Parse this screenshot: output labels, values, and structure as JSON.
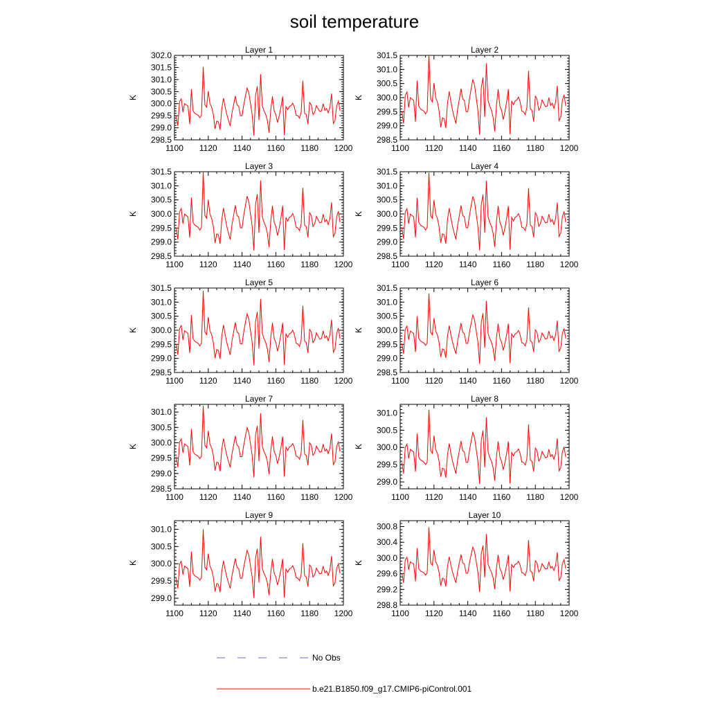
{
  "figure": {
    "title": "soil temperature"
  },
  "chart_data": {
    "type": "line",
    "x_start": 1101,
    "x_end": 1198,
    "xlim": [
      1100,
      1200
    ],
    "x_ticks": [
      1100,
      1120,
      1140,
      1160,
      1180,
      1200
    ],
    "line_color": "#ff0000",
    "obs_color": "#6a6ad0",
    "legend": [
      {
        "label": "No Obs",
        "style": "dashed",
        "color": "#6a6ad0"
      },
      {
        "label": "b.e21.B1850.f09_g17.CMIP6-piControl.001",
        "style": "solid",
        "color": "#ff0000"
      }
    ],
    "base_series": [
      299.5,
      299.08,
      300.08,
      300.2,
      299.65,
      300.0,
      299.95,
      299.9,
      299.15,
      300.6,
      299.7,
      299.6,
      299.56,
      299.52,
      299.42,
      299.52,
      301.52,
      299.95,
      299.85,
      300.52,
      300.0,
      299.85,
      299.55,
      298.95,
      299.28,
      299.25,
      298.92,
      299.8,
      300.22,
      299.85,
      299.55,
      299.3,
      299.08,
      299.6,
      299.95,
      300.32,
      299.95,
      299.9,
      299.5,
      299.5,
      299.95,
      300.32,
      300.65,
      300.45,
      300.0,
      299.55,
      298.68,
      300.35,
      300.72,
      299.32,
      301.22,
      299.9,
      299.7,
      299.55,
      299.3,
      298.8,
      299.75,
      300.3,
      299.7,
      299.55,
      299.22,
      299.5,
      299.85,
      300.3,
      298.7,
      299.88,
      299.75,
      299.88,
      299.92,
      300.02,
      299.85,
      299.52,
      299.5,
      299.4,
      299.65,
      300.95,
      299.6,
      299.55,
      299.15,
      300.05,
      299.95,
      299.55,
      299.65,
      299.92,
      299.8,
      299.68,
      299.7,
      300.0,
      299.72,
      299.8,
      299.62,
      299.85,
      300.42,
      299.18,
      299.3,
      299.9,
      300.1,
      299.7
    ],
    "panels": [
      {
        "title": "Layer 1",
        "ylabel": "K",
        "ylim": [
          298.5,
          302.0
        ],
        "y_ticks": [
          "298.5",
          "299.0",
          "299.5",
          "300.0",
          "300.5",
          "301.0",
          "301.5",
          "302.0"
        ],
        "amp": 1.0,
        "offset": 0.0
      },
      {
        "title": "Layer 2",
        "ylabel": "K",
        "ylim": [
          298.5,
          301.5
        ],
        "y_ticks": [
          "298.5",
          "299.0",
          "299.5",
          "300.0",
          "300.5",
          "301.0",
          "301.5"
        ],
        "amp": 1.0,
        "offset": 0.0
      },
      {
        "title": "Layer 3",
        "ylabel": "K",
        "ylim": [
          298.5,
          301.5
        ],
        "y_ticks": [
          "298.5",
          "299.0",
          "299.5",
          "300.0",
          "300.5",
          "301.0",
          "301.5"
        ],
        "amp": 0.98,
        "offset": 0.0
      },
      {
        "title": "Layer 4",
        "ylabel": "K",
        "ylim": [
          298.5,
          301.5
        ],
        "y_ticks": [
          "298.5",
          "299.0",
          "299.5",
          "300.0",
          "300.5",
          "301.0",
          "301.5"
        ],
        "amp": 0.97,
        "offset": 0.0
      },
      {
        "title": "Layer 5",
        "ylabel": "K",
        "ylim": [
          298.5,
          301.5
        ],
        "y_ticks": [
          "298.5",
          "299.0",
          "299.5",
          "300.0",
          "300.5",
          "301.0",
          "301.5"
        ],
        "amp": 0.93,
        "offset": 0.0
      },
      {
        "title": "Layer 6",
        "ylabel": "K",
        "ylim": [
          298.5,
          301.5
        ],
        "y_ticks": [
          "298.5",
          "299.0",
          "299.5",
          "300.0",
          "300.5",
          "301.0",
          "301.5"
        ],
        "amp": 0.88,
        "offset": 0.0
      },
      {
        "title": "Layer 7",
        "ylabel": "K",
        "ylim": [
          298.5,
          301.25
        ],
        "y_ticks": [
          "298.5",
          "299.0",
          "299.5",
          "300.0",
          "300.5",
          "301.0"
        ],
        "amp": 0.82,
        "offset": 0.0
      },
      {
        "title": "Layer 8",
        "ylabel": "K",
        "ylim": [
          298.8,
          301.25
        ],
        "y_ticks": [
          "299.0",
          "299.5",
          "300.0",
          "300.5",
          "301.0"
        ],
        "amp": 0.76,
        "offset": 0.0
      },
      {
        "title": "Layer 9",
        "ylabel": "K",
        "ylim": [
          298.8,
          301.25
        ],
        "y_ticks": [
          "299.0",
          "299.5",
          "300.0",
          "300.5",
          "301.0"
        ],
        "amp": 0.7,
        "offset": 0.0
      },
      {
        "title": "Layer 10",
        "ylabel": "K",
        "ylim": [
          298.8,
          300.95
        ],
        "y_ticks": [
          "298.8",
          "299.2",
          "299.6",
          "300.0",
          "300.4",
          "300.8"
        ],
        "amp": 0.58,
        "offset": 0.0
      }
    ]
  }
}
